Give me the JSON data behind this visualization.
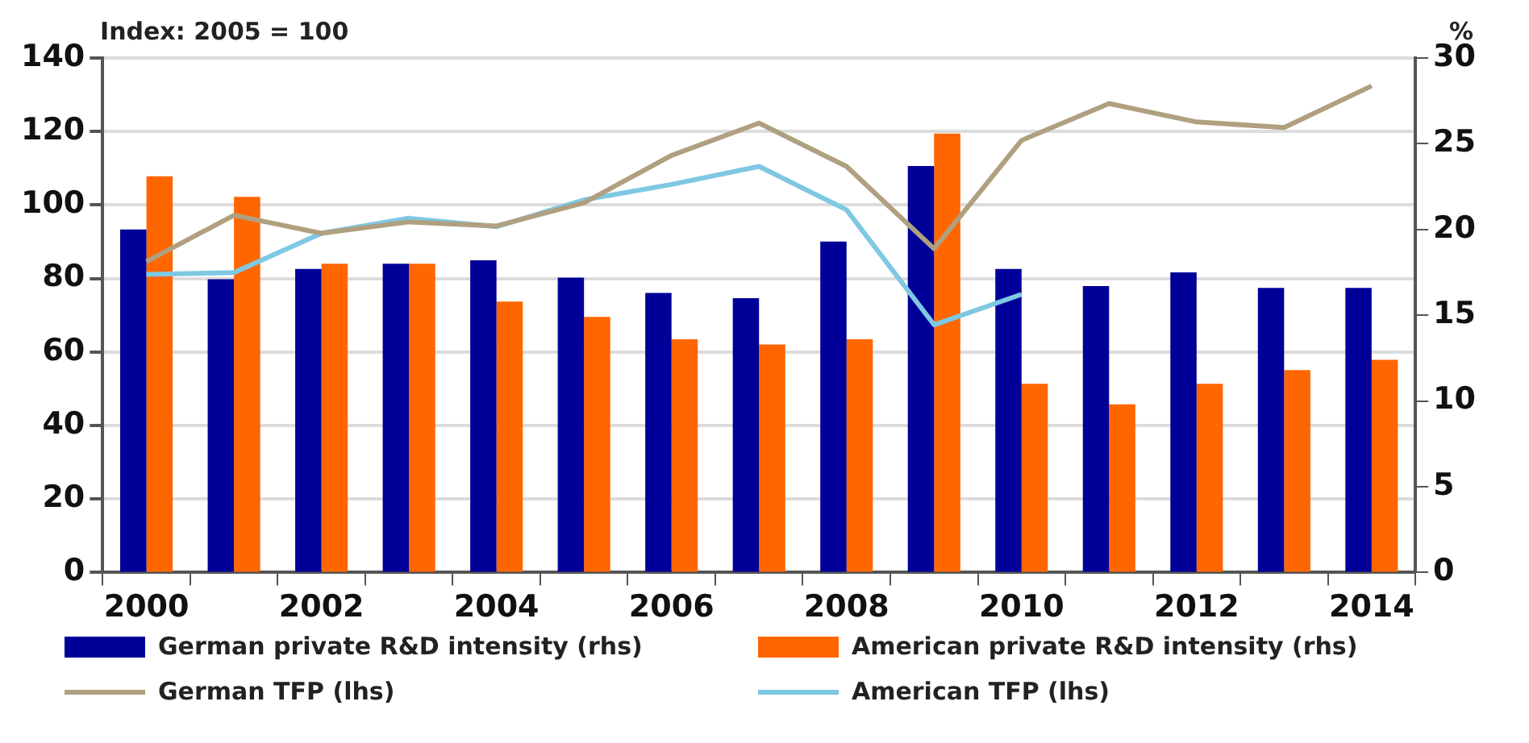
{
  "chart_data": {
    "type": "bar",
    "ylabel": "Index: 2005 = 100",
    "y2label": "%",
    "categories": [
      "2000",
      null,
      "2002",
      null,
      "2004",
      null,
      "2006",
      null,
      "2008",
      null,
      "2010",
      null,
      "2012",
      null,
      "2014"
    ],
    "series": [
      {
        "name": "German private R&D intensity (rhs)",
        "axis": "y2",
        "color": "#000099",
        "values": [
          20.0,
          17.1,
          17.7,
          18.0,
          18.2,
          17.2,
          16.3,
          16.0,
          19.3,
          23.7,
          17.7,
          16.7,
          17.5,
          16.6,
          16.6
        ]
      },
      {
        "name": "American private R&D intensity (rhs)",
        "axis": "y2",
        "color": "#ff6600",
        "values": [
          23.1,
          21.9,
          18.0,
          18.0,
          15.8,
          14.9,
          13.6,
          13.3,
          13.6,
          25.6,
          11.0,
          9.8,
          11.0,
          11.8,
          12.4
        ]
      },
      {
        "name": "German TFP (lhs)",
        "type": "line",
        "color": "#b0a080",
        "values": [
          84.6,
          97.2,
          92.3,
          95.4,
          94.3,
          100.6,
          113.5,
          122.3,
          110.5,
          88.1,
          117.6,
          127.6,
          122.6,
          121.1,
          132.4
        ]
      },
      {
        "name": "American TFP (lhs)",
        "type": "line",
        "color": "#7ec8e3",
        "values": [
          81.1,
          81.6,
          92.3,
          96.4,
          94.1,
          101.4,
          105.6,
          110.5,
          98.7,
          67.4,
          75.7,
          null,
          null,
          null,
          null
        ]
      }
    ],
    "ylim": [
      0,
      140
    ],
    "yticks": [
      0,
      20,
      40,
      60,
      80,
      100,
      120,
      140
    ],
    "y2lim": [
      0,
      30
    ],
    "y2ticks": [
      0,
      5,
      10,
      15,
      20,
      25,
      30
    ],
    "grid": "y",
    "legend": "bottom",
    "marker": "none"
  }
}
